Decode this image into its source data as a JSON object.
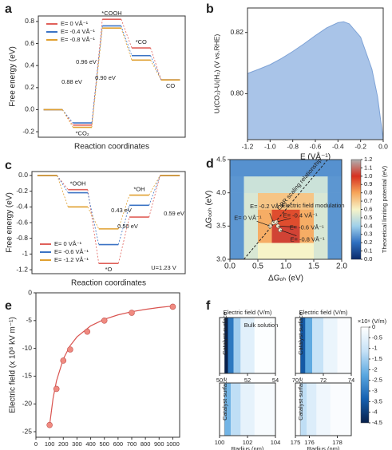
{
  "chart_data": [
    {
      "type": "energy",
      "panel_label": "a",
      "xlabel": "Reaction coordinates",
      "ylabel": "Free energy (eV)",
      "categories": [
        null,
        "*CO₂",
        "*COOH",
        "*CO",
        "CO"
      ],
      "series": [
        {
          "name": "E= 0 VÅ⁻¹",
          "color": "#e0605a",
          "values": [
            0,
            -0.14,
            0.82,
            0.56,
            0.27
          ]
        },
        {
          "name": "E= -0.4 VÅ⁻¹",
          "color": "#3b73c4",
          "values": [
            0,
            -0.12,
            0.76,
            0.49,
            0.27
          ]
        },
        {
          "name": "E= -0.8 VÅ⁻¹",
          "color": "#e0a030",
          "values": [
            0,
            -0.16,
            0.74,
            0.45,
            0.27
          ]
        }
      ],
      "annotations": [
        {
          "text": "0.96 eV",
          "color": "#e0605a"
        },
        {
          "text": "0.88 eV",
          "color": "#3b73c4"
        },
        {
          "text": "0.90 eV",
          "color": "#e0a030"
        }
      ],
      "ylim": [
        -0.25,
        0.85
      ],
      "yticks": [
        -0.2,
        {
          "value": 0,
          "label": "0.0"
        },
        0.2,
        0.4,
        0.6,
        0.8
      ]
    },
    {
      "type": "area",
      "panel_label": "b",
      "xlabel": "E (VÅ⁻¹)",
      "ylabel": "Uₗ(CO₂)-Uₗ(H₂) (V vs.RHE)",
      "color": "#a9c4e8",
      "x": [
        -1.2,
        -1.1,
        -1.0,
        -0.9,
        -0.8,
        -0.7,
        -0.6,
        -0.5,
        -0.4,
        -0.35,
        -0.3,
        -0.2,
        -0.1,
        -0.05,
        0
      ],
      "values": [
        0.8066,
        0.808,
        0.8095,
        0.8115,
        0.8138,
        0.8163,
        0.819,
        0.8215,
        0.8232,
        0.8235,
        0.8228,
        0.8185,
        0.808,
        0.799,
        0.785
      ],
      "xlim": [
        -1.2,
        0
      ],
      "xticks": [
        -1.2,
        {
          "value": -1,
          "label": "-1.0"
        },
        -0.8,
        -0.6,
        -0.4,
        -0.2,
        {
          "value": 0,
          "label": "0.0"
        }
      ],
      "ylim": [
        0.785,
        0.828
      ],
      "yticks": [
        {
          "value": 0.8,
          "label": "0.80"
        },
        {
          "value": 0.82,
          "label": "0.82"
        }
      ]
    },
    {
      "type": "energy",
      "panel_label": "c",
      "xlabel": "Reaction coordinates",
      "ylabel": "Free energy (eV)",
      "note": "U=1.23 V",
      "categories": [
        null,
        "*OOH",
        "*O",
        "*OH",
        null
      ],
      "series": [
        {
          "name": "E= 0 VÅ⁻¹",
          "color": "#e0605a",
          "values": [
            0,
            -0.18,
            -1.12,
            -0.53,
            0
          ]
        },
        {
          "name": "E= -0.6 VÅ⁻¹",
          "color": "#3b73c4",
          "values": [
            0,
            -0.22,
            -0.88,
            -0.38,
            0
          ]
        },
        {
          "name": "E= -1.2 VÅ⁻¹",
          "color": "#e0a030",
          "values": [
            0,
            -0.4,
            -0.68,
            -0.25,
            0
          ]
        }
      ],
      "annotations": [
        {
          "text": "0.43 eV",
          "color": "#e0a030"
        },
        {
          "text": "0.50 eV",
          "color": "#3b73c4"
        },
        {
          "text": "0.59 eV",
          "color": "#e0605a"
        }
      ],
      "ylim": [
        -1.25,
        0.05
      ],
      "yticks": [
        -1.2,
        -1,
        -0.8,
        -0.6,
        -0.4,
        -0.2,
        {
          "value": 0,
          "label": "0.0"
        }
      ]
    },
    {
      "type": "heatmap",
      "panel_label": "d",
      "xlabel": "ΔGₒₕ (eV)",
      "ylabel": "ΔGₒₒₕ (eV)",
      "colorbar_label": "Theoretical limiting potential (eV)",
      "xbins": [
        0,
        0.25,
        0.5,
        0.75,
        1,
        1.25,
        1.5,
        1.75,
        2
      ],
      "ybins": [
        3,
        3.25,
        3.5,
        3.75,
        4,
        4.25,
        4.5
      ],
      "z": [
        [
          0.28,
          0.53,
          0.6,
          0.6,
          0.6,
          0.6,
          0.53,
          0.28
        ],
        [
          0.28,
          0.53,
          0.78,
          1.03,
          1.03,
          0.78,
          0.53,
          0.28
        ],
        [
          0.28,
          0.53,
          0.78,
          0.95,
          0.95,
          0.78,
          0.53,
          0.28
        ],
        [
          0.28,
          0.53,
          0.72,
          0.72,
          0.72,
          0.72,
          0.53,
          0.28
        ],
        [
          0.28,
          0.5,
          0.5,
          0.5,
          0.5,
          0.5,
          0.5,
          0.28
        ],
        [
          0.27,
          0.27,
          0.27,
          0.27,
          0.27,
          0.27,
          0.27,
          0.27
        ]
      ],
      "colormap": [
        "#0b2a6b",
        "#2f6fc0",
        "#9fd0ea",
        "#f7f4c8",
        "#f6a55a",
        "#d7301f",
        "#b0b0b0"
      ],
      "clim": [
        0,
        1.2
      ],
      "cticks": [
        {
          "value": 0,
          "label": "0.0"
        },
        0.1,
        0.2,
        0.3,
        0.4,
        0.5,
        0.6,
        0.7,
        0.8,
        0.9,
        {
          "value": 1,
          "label": "1.0"
        },
        1.1,
        1.2
      ],
      "scaling_line": {
        "label": "ORR scaling relationship",
        "x": [
          0.25,
          1.75
        ],
        "y": [
          3,
          4.5
        ]
      },
      "points": {
        "x": [
          0.72,
          0.78,
          0.83,
          0.86,
          0.9
        ],
        "y": [
          3.5,
          3.55,
          3.56,
          3.5,
          3.44
        ],
        "labels": [
          "E= 0 VÅ⁻¹",
          "E= -0.2 VÅ⁻¹",
          "E= -0.4 VÅ⁻¹",
          "E= -0.6 VÅ⁻¹",
          "E= -0.8 VÅ⁻¹"
        ]
      },
      "region_label": "Electric field modulation",
      "xlim": [
        0,
        2
      ],
      "xticks": [
        {
          "value": 0,
          "label": "0.0"
        },
        0.5,
        {
          "value": 1,
          "label": "1.0"
        },
        1.5,
        {
          "value": 2,
          "label": "2.0"
        }
      ],
      "ylim": [
        3,
        4.5
      ],
      "yticks": [
        {
          "value": 3,
          "label": "3.0"
        },
        3.5,
        {
          "value": 4,
          "label": "4.0"
        },
        4.5
      ]
    },
    {
      "type": "scatter",
      "panel_label": "e",
      "ylabel": "Electric field (x 10⁸ kV m⁻¹)",
      "color": "#f08a80",
      "x": [
        100,
        150,
        200,
        250,
        375,
        500,
        700,
        1000
      ],
      "values": [
        -23.8,
        -17.3,
        -12.2,
        -10.2,
        -7,
        -5,
        -3.6,
        -2.5
      ],
      "fit": {
        "color": "#d9534f",
        "x": [
          100,
          125,
          150,
          200,
          250,
          300,
          400,
          500,
          600,
          700,
          800,
          900,
          1000
        ],
        "values": [
          -23.8,
          -19.04,
          -15.87,
          -11.9,
          -9.52,
          -7.93,
          -5.95,
          -4.76,
          -3.97,
          -3.4,
          -2.98,
          -2.64,
          -2.38
        ]
      },
      "xlim": [
        0,
        1050
      ],
      "xticks": [
        0,
        100,
        200,
        300,
        400,
        500,
        600,
        700,
        800,
        900,
        1000
      ],
      "ylim": [
        -26,
        0
      ],
      "yticks": [
        -25,
        -20,
        -15,
        -10,
        -5,
        0
      ]
    },
    {
      "type": "field",
      "panel_label": "f",
      "colorbar_label": "×10⁹ (V/m)",
      "colormap": [
        "#08204a",
        "#1560b0",
        "#5aa7e0",
        "#c6e2f7",
        "#ffffff"
      ],
      "clim": [
        -4.5,
        0
      ],
      "cticks": [
        0,
        -0.5,
        -1,
        -1.5,
        -2,
        -2.5,
        -3,
        -3.5,
        -4,
        -4.5
      ],
      "subplots": [
        {
          "title": "Electric field (V/m)",
          "note": "Bulk solution",
          "surface_label": "Catalyst surface",
          "xlim": [
            50,
            54
          ],
          "xticks": [
            50,
            52,
            54
          ],
          "x": [
            50.35,
            50.6,
            51,
            51.5,
            52.5
          ],
          "values": [
            -4.5,
            -3,
            -1.5,
            -0.6,
            -0.05
          ]
        },
        {
          "title": "Electric field (V/m)",
          "surface_label": "Catalyst surface",
          "xlim": [
            70,
            74
          ],
          "xticks": [
            70,
            72,
            74
          ],
          "x": [
            70.35,
            70.7,
            71.2,
            72,
            73
          ],
          "values": [
            -3.5,
            -2.2,
            -1.1,
            -0.4,
            -0.1
          ]
        },
        {
          "surface_label": "Catalyst surface",
          "xlabel": "Radius (nm)",
          "xlim": [
            100,
            104
          ],
          "xticks": [
            100,
            102,
            104
          ],
          "x": [
            100.35,
            100.8,
            101.5,
            102.5
          ],
          "values": [
            -2,
            -1.2,
            -0.5,
            -0.15
          ]
        },
        {
          "surface_label": "Catalyst surface",
          "xlabel": "Radius (nm)",
          "xlim": [
            175,
            179
          ],
          "xticks": [
            175,
            176,
            178
          ],
          "x": [
            175.35,
            175.8,
            176.5,
            177.5
          ],
          "values": [
            -1.2,
            -0.7,
            -0.3,
            -0.1
          ]
        }
      ]
    }
  ]
}
